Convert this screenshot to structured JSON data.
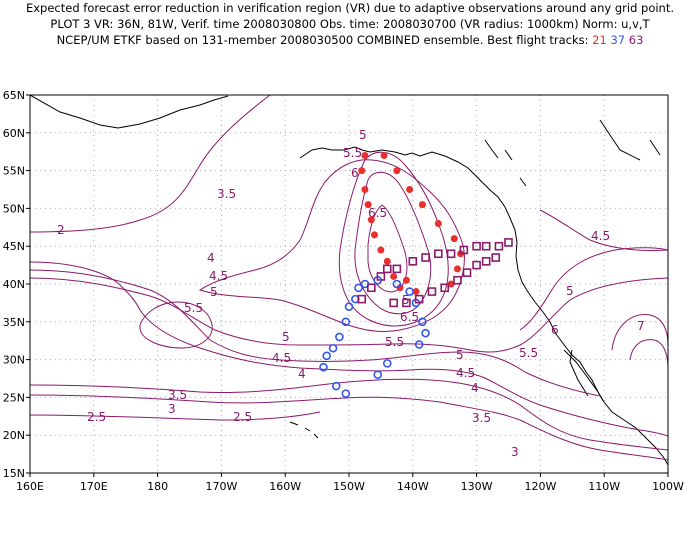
{
  "title": {
    "line1": "Expected forecast error reduction in verification region (VR) due to adaptive observations around any grid point.",
    "line2": "PLOT 3 VR: 36N, 81W, Verif. time 2008030800 Obs. time: 2008030700 (VR radius: 1000km) Norm: u,v,T",
    "line3_prefix": "NCEP/UM ETKF based on 131-member 2008030500 COMBINED ensemble.  Best flight tracks:",
    "track_ids": [
      "21",
      "37",
      "63"
    ]
  },
  "colors": {
    "contour": "#8b1a6b",
    "track_21": "#e8302c",
    "track_37": "#3355ee",
    "track_63": "#8b1a6b",
    "coastline": "#000000",
    "grid": "#aaaaaa"
  },
  "axes": {
    "lon_labels": [
      "160E",
      "170E",
      "180",
      "170W",
      "160W",
      "150W",
      "140W",
      "130W",
      "120W",
      "110W",
      "100W"
    ],
    "lat_labels": [
      "15N",
      "20N",
      "25N",
      "30N",
      "35N",
      "40N",
      "45N",
      "50N",
      "55N",
      "60N",
      "65N"
    ]
  },
  "contour_labels": [
    "2",
    "2.5",
    "2.5",
    "3",
    "3",
    "3.5",
    "3.5",
    "3.5",
    "4",
    "4",
    "4",
    "4.5",
    "4.5",
    "4.5",
    "4.5",
    "5",
    "5",
    "5",
    "5",
    "5",
    "5",
    "5.5",
    "5.5",
    "5.5",
    "5.5",
    "6",
    "6",
    "6.5",
    "6.5",
    "7"
  ],
  "tracks": {
    "t21": [
      [
        -147.5,
        57
      ],
      [
        -144.5,
        57
      ],
      [
        -148,
        55
      ],
      [
        -142.5,
        55
      ],
      [
        -147.5,
        52.5
      ],
      [
        -140.5,
        52.5
      ],
      [
        -147,
        50.5
      ],
      [
        -138.5,
        50.5
      ],
      [
        -146.5,
        48.5
      ],
      [
        -136,
        48
      ],
      [
        -146,
        46.5
      ],
      [
        -133.5,
        46
      ],
      [
        -145,
        44.5
      ],
      [
        -132.5,
        44
      ],
      [
        -144,
        43
      ],
      [
        -133,
        42
      ],
      [
        -143,
        41
      ],
      [
        -134,
        40
      ],
      [
        -141,
        40.5
      ],
      [
        -142,
        39.5
      ],
      [
        -139.5,
        39
      ]
    ],
    "t37": [
      [
        -147.5,
        40
      ],
      [
        -145.5,
        40.5
      ],
      [
        -148.5,
        39.5
      ],
      [
        -142.5,
        40
      ],
      [
        -149,
        38
      ],
      [
        -140.5,
        39
      ],
      [
        -150,
        37
      ],
      [
        -139.5,
        37.5
      ],
      [
        -150.5,
        35
      ],
      [
        -138.5,
        35
      ],
      [
        -151.5,
        33
      ],
      [
        -138,
        33.5
      ],
      [
        -152.5,
        31.5
      ],
      [
        -139,
        32
      ],
      [
        -153.5,
        30.5
      ],
      [
        -144,
        29.5
      ],
      [
        -154,
        29
      ],
      [
        -145.5,
        28
      ],
      [
        -152,
        26.5
      ],
      [
        -150.5,
        25.5
      ]
    ],
    "t63": [
      [
        -148,
        38
      ],
      [
        -146.5,
        39.5
      ],
      [
        -145,
        41
      ],
      [
        -144,
        42
      ],
      [
        -142.5,
        42
      ],
      [
        -140,
        43
      ],
      [
        -138,
        43.5
      ],
      [
        -136,
        44
      ],
      [
        -134,
        44
      ],
      [
        -132,
        44.5
      ],
      [
        -130,
        45
      ],
      [
        -128.5,
        45
      ],
      [
        -126.5,
        45
      ],
      [
        -125,
        45.5
      ],
      [
        -127,
        43.5
      ],
      [
        -128.5,
        43
      ],
      [
        -130,
        42.5
      ],
      [
        -131.5,
        41.5
      ],
      [
        -133,
        40.5
      ],
      [
        -135,
        39.5
      ],
      [
        -137,
        39
      ],
      [
        -139,
        38
      ],
      [
        -141,
        37.5
      ],
      [
        -143,
        37.5
      ]
    ]
  }
}
